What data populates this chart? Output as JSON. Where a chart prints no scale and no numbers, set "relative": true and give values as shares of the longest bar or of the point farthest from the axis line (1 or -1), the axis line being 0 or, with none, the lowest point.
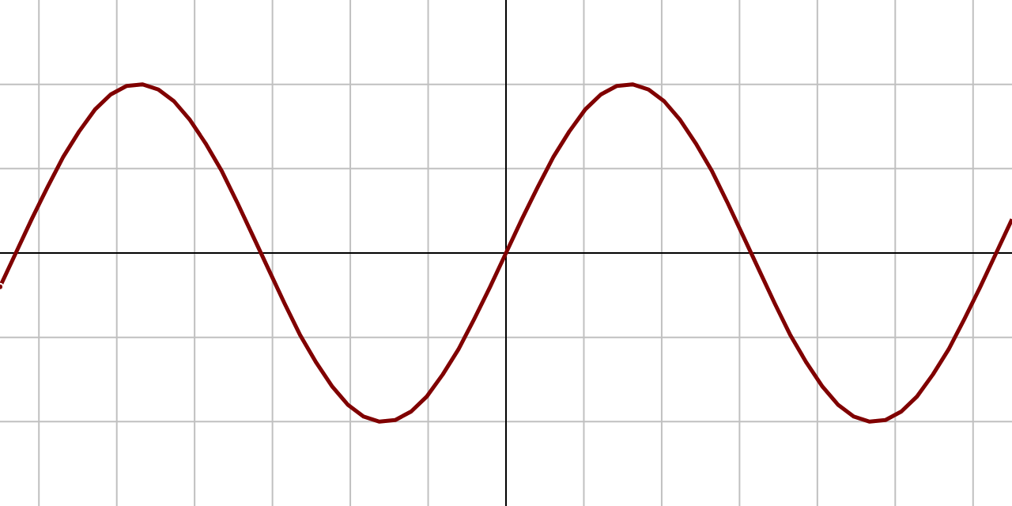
{
  "chart_data": {
    "type": "line",
    "relative": true,
    "grid": true,
    "line_style": "solid",
    "marker": "none",
    "categories": [
      null,
      null,
      null,
      null,
      null,
      null,
      null,
      null,
      null,
      null,
      null,
      null,
      null,
      null,
      null,
      null,
      null,
      null,
      null,
      null,
      null,
      null,
      null,
      null,
      null,
      null,
      null,
      null,
      null,
      null,
      null,
      null,
      null,
      null,
      null,
      null,
      null,
      null,
      null,
      null,
      null,
      null,
      null,
      null,
      null,
      null,
      null,
      null,
      null,
      null,
      null,
      null,
      null,
      null,
      null,
      null,
      null,
      null,
      null,
      null,
      null,
      null,
      null,
      null,
      null
    ],
    "series": [
      {
        "color": "#800000",
        "values": [
          -0.2,
          0,
          0.2,
          0.39,
          0.57,
          0.72,
          0.85,
          0.94,
          0.99,
          1.0,
          0.97,
          0.9,
          0.79,
          0.65,
          0.49,
          0.3,
          0.1,
          -0.1,
          -0.3,
          -0.49,
          -0.65,
          -0.79,
          -0.9,
          -0.97,
          -1.0,
          -0.99,
          -0.94,
          -0.85,
          -0.72,
          -0.57,
          -0.39,
          -0.2,
          0,
          0.2,
          0.39,
          0.57,
          0.72,
          0.85,
          0.94,
          0.99,
          1.0,
          0.97,
          0.9,
          0.79,
          0.65,
          0.49,
          0.3,
          0.1,
          -0.1,
          -0.3,
          -0.49,
          -0.65,
          -0.79,
          -0.9,
          -0.97,
          -1.0,
          -0.99,
          -0.94,
          -0.85,
          -0.72,
          -0.57,
          -0.39,
          -0.2,
          0,
          0.2
        ]
      }
    ]
  }
}
